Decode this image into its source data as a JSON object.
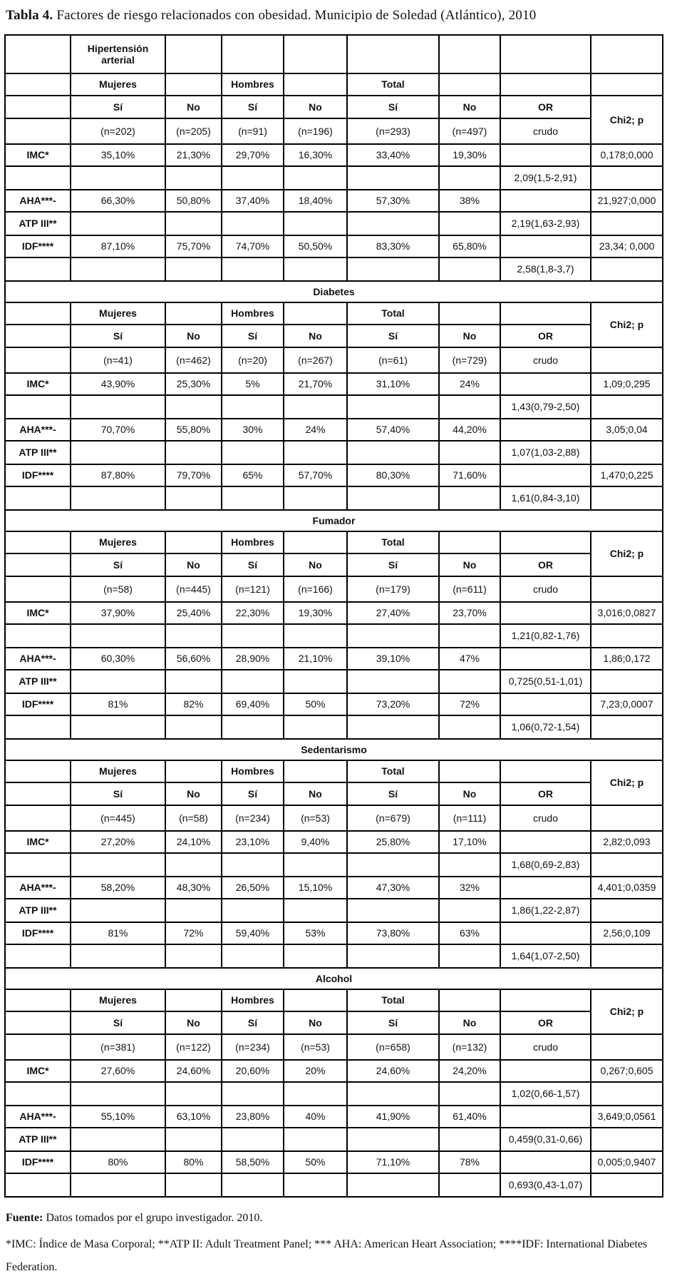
{
  "title": {
    "bold": "Tabla 4.",
    "rest": " Factores de riesgo relacionados con obesidad. Municipio de Soledad (Atlántico), 2010"
  },
  "table": {
    "headers": {
      "mujeres": "Mujeres",
      "hombres": "Hombres",
      "total": "Total",
      "si": "Sí",
      "no": "No",
      "or": "OR",
      "crudo": "crudo",
      "chi2": "Chi2; p"
    },
    "sections": [
      {
        "name": "Hipertensión arterial",
        "full_title_row": false,
        "n": [
          "(n=202)",
          "(n=205)",
          "(n=91)",
          "(n=196)",
          "(n=293)",
          "(n=497)"
        ],
        "rows": [
          {
            "label": "IMC*",
            "cells": [
              "35,10%",
              "21,30%",
              "29,70%",
              "16,30%",
              "33,40%",
              "19,30%"
            ],
            "or": "",
            "chi2": "0,178;0,000"
          },
          {
            "label": "",
            "cells": [
              "",
              "",
              "",
              "",
              "",
              ""
            ],
            "or": "2,09(1,5-2,91)",
            "chi2": ""
          },
          {
            "label": "AHA***-",
            "cells": [
              "66,30%",
              "50,80%",
              "37,40%",
              "18,40%",
              "57,30%",
              "38%"
            ],
            "or": "",
            "chi2": "21,927;0,000"
          },
          {
            "label": "ATP III**",
            "cells": [
              "",
              "",
              "",
              "",
              "",
              ""
            ],
            "or": "2,19(1,63-2,93)",
            "chi2": ""
          },
          {
            "label": "IDF****",
            "cells": [
              "87,10%",
              "75,70%",
              "74,70%",
              "50,50%",
              "83,30%",
              "65,80%"
            ],
            "or": "",
            "chi2": "23,34; 0,000"
          },
          {
            "label": "",
            "cells": [
              "",
              "",
              "",
              "",
              "",
              ""
            ],
            "or": "2,58(1,8-3,7)",
            "chi2": ""
          }
        ]
      },
      {
        "name": "Diabetes",
        "full_title_row": true,
        "n": [
          "(n=41)",
          "(n=462)",
          "(n=20)",
          "(n=267)",
          "(n=61)",
          "(n=729)"
        ],
        "rows": [
          {
            "label": "IMC*",
            "cells": [
              "43,90%",
              "25,30%",
              "5%",
              "21,70%",
              "31,10%",
              "24%"
            ],
            "or": "",
            "chi2": "1,09;0,295"
          },
          {
            "label": "",
            "cells": [
              "",
              "",
              "",
              "",
              "",
              ""
            ],
            "or": "1,43(0,79-2,50)",
            "chi2": ""
          },
          {
            "label": "AHA***-",
            "cells": [
              "70,70%",
              "55,80%",
              "30%",
              "24%",
              "57,40%",
              "44,20%"
            ],
            "or": "",
            "chi2": "3,05;0,04"
          },
          {
            "label": "ATP III**",
            "cells": [
              "",
              "",
              "",
              "",
              "",
              ""
            ],
            "or": "1,07(1,03-2,88)",
            "chi2": ""
          },
          {
            "label": "IDF****",
            "cells": [
              "87,80%",
              "79,70%",
              "65%",
              "57,70%",
              "80,30%",
              "71,60%"
            ],
            "or": "",
            "chi2": "1,470;0,225"
          },
          {
            "label": "",
            "cells": [
              "",
              "",
              "",
              "",
              "",
              ""
            ],
            "or": "1,61(0,84-3,10)",
            "chi2": ""
          }
        ]
      },
      {
        "name": "Fumador",
        "full_title_row": true,
        "n": [
          "(n=58)",
          "(n=445)",
          "(n=121)",
          "(n=166)",
          "(n=179)",
          "(n=611)"
        ],
        "rows": [
          {
            "label": "IMC*",
            "cells": [
              "37,90%",
              "25,40%",
              "22,30%",
              "19,30%",
              "27,40%",
              "23,70%"
            ],
            "or": "",
            "chi2": "3,016;0,0827"
          },
          {
            "label": "",
            "cells": [
              "",
              "",
              "",
              "",
              "",
              ""
            ],
            "or": "1,21(0,82-1,76)",
            "chi2": ""
          },
          {
            "label": "AHA***-",
            "cells": [
              "60,30%",
              "56,60%",
              "28,90%",
              "21,10%",
              "39,10%",
              "47%"
            ],
            "or": "",
            "chi2": "1,86;0,172"
          },
          {
            "label": "ATP III**",
            "cells": [
              "",
              "",
              "",
              "",
              "",
              ""
            ],
            "or": "0,725(0,51-1,01)",
            "chi2": ""
          },
          {
            "label": "IDF****",
            "cells": [
              "81%",
              "82%",
              "69,40%",
              "50%",
              "73,20%",
              "72%"
            ],
            "or": "",
            "chi2": "7,23;0,0007"
          },
          {
            "label": "",
            "cells": [
              "",
              "",
              "",
              "",
              "",
              ""
            ],
            "or": "1,06(0,72-1,54)",
            "chi2": ""
          }
        ]
      },
      {
        "name": "Sedentarismo",
        "full_title_row": true,
        "n": [
          "(n=445)",
          "(n=58)",
          "(n=234)",
          "(n=53)",
          "(n=679)",
          "(n=111)"
        ],
        "rows": [
          {
            "label": "IMC*",
            "cells": [
              "27,20%",
              "24,10%",
              "23,10%",
              "9,40%",
              "25,80%",
              "17,10%"
            ],
            "or": "",
            "chi2": "2,82;0,093"
          },
          {
            "label": "",
            "cells": [
              "",
              "",
              "",
              "",
              "",
              ""
            ],
            "or": "1,68(0,69-2,83)",
            "chi2": ""
          },
          {
            "label": "AHA***-",
            "cells": [
              "58,20%",
              "48,30%",
              "26,50%",
              "15,10%",
              "47,30%",
              "32%"
            ],
            "or": "",
            "chi2": "4,401;0,0359"
          },
          {
            "label": "ATP III**",
            "cells": [
              "",
              "",
              "",
              "",
              "",
              ""
            ],
            "or": "1,86(1,22-2,87)",
            "chi2": ""
          },
          {
            "label": "IDF****",
            "cells": [
              "81%",
              "72%",
              "59,40%",
              "53%",
              "73,80%",
              "63%"
            ],
            "or": "",
            "chi2": "2,56;0,109"
          },
          {
            "label": "",
            "cells": [
              "",
              "",
              "",
              "",
              "",
              ""
            ],
            "or": "1,64(1,07-2,50)",
            "chi2": ""
          }
        ]
      },
      {
        "name": "Alcohol",
        "full_title_row": true,
        "n": [
          "(n=381)",
          "(n=122)",
          "(n=234)",
          "(n=53)",
          "(n=658)",
          "(n=132)"
        ],
        "rows": [
          {
            "label": "IMC*",
            "cells": [
              "27,60%",
              "24,60%",
              "20,60%",
              "20%",
              "24,60%",
              "24,20%"
            ],
            "or": "",
            "chi2": "0,267;0,605"
          },
          {
            "label": "",
            "cells": [
              "",
              "",
              "",
              "",
              "",
              ""
            ],
            "or": "1,02(0,66-1,57)",
            "chi2": ""
          },
          {
            "label": "AHA***-",
            "cells": [
              "55,10%",
              "63,10%",
              "23,80%",
              "40%",
              "41,90%",
              "61,40%"
            ],
            "or": "",
            "chi2": "3,649;0,0561"
          },
          {
            "label": "ATP III**",
            "cells": [
              "",
              "",
              "",
              "",
              "",
              ""
            ],
            "or": "0,459(0,31-0,66)",
            "chi2": ""
          },
          {
            "label": "IDF****",
            "cells": [
              "80%",
              "80%",
              "58,50%",
              "50%",
              "71,10%",
              "78%"
            ],
            "or": "",
            "chi2": "0,005;0,9407"
          },
          {
            "label": "",
            "cells": [
              "",
              "",
              "",
              "",
              "",
              ""
            ],
            "or": "0,693(0,43-1,07)",
            "chi2": ""
          }
        ]
      }
    ]
  },
  "footer": {
    "fuente_label": "Fuente:",
    "fuente_text": " Datos tomados por el grupo investigador. 2010.",
    "note_text": "*IMC: Índice de Masa Corporal; **ATP II: Adult Treatment Panel; *** AHA: American Heart Association; ****IDF: International Diabetes Federation."
  }
}
